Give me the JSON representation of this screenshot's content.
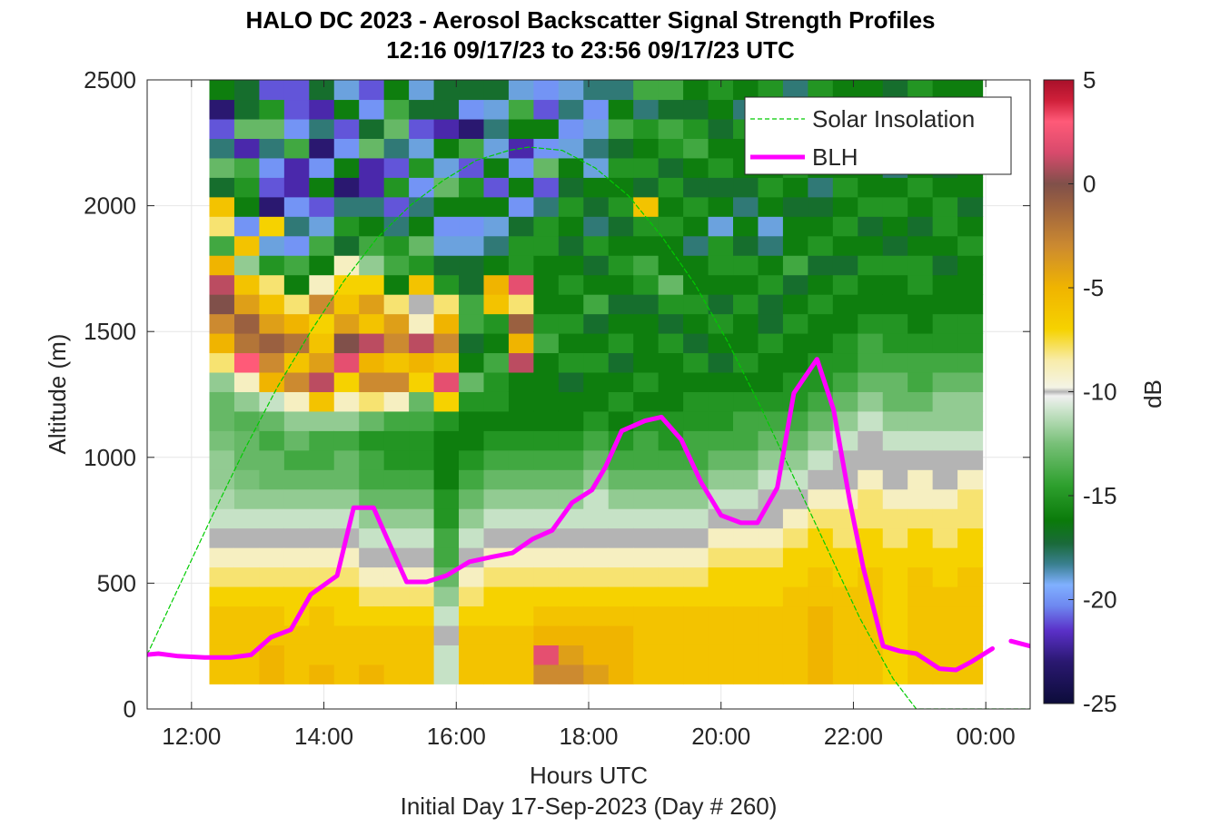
{
  "chart_data": {
    "type": "heatmap",
    "title": [
      "HALO DC 2023 - Aerosol Backscatter Signal Strength Profiles",
      "12:16 09/17/23 to 23:56 09/17/23  UTC"
    ],
    "xlabel": "Hours UTC",
    "ylabel": "Altitude (m)",
    "footer": "Initial Day 17-Sep-2023 (Day # 260)",
    "xlim": [
      11.33,
      24.67
    ],
    "ylim": [
      0,
      2500
    ],
    "xticks": [
      {
        "v": 12,
        "label": "12:00"
      },
      {
        "v": 14,
        "label": "14:00"
      },
      {
        "v": 16,
        "label": "16:00"
      },
      {
        "v": 18,
        "label": "18:00"
      },
      {
        "v": 20,
        "label": "20:00"
      },
      {
        "v": 22,
        "label": "22:00"
      },
      {
        "v": 24,
        "label": "00:00"
      }
    ],
    "yticks": [
      0,
      500,
      1000,
      1500,
      2000,
      2500
    ],
    "grid": true,
    "colorbar": {
      "label": "dB",
      "min": -25,
      "max": 5,
      "ticks": [
        5,
        0,
        -5,
        -10,
        -15,
        -20,
        -25
      ]
    },
    "heatmap": {
      "x_start": 12.27,
      "x_end": 23.95,
      "y_start": 100,
      "y_end": 2500,
      "note": "dB values per time column, low to high altitude",
      "y_low": 100,
      "y_high": 2500,
      "columns": [
        [
          -6,
          -6,
          -6,
          -6,
          -7,
          -8,
          -9,
          -10,
          -11,
          -11.5,
          -12,
          -12,
          -12.5,
          -13,
          -13,
          -12,
          -8,
          -5,
          -3,
          0,
          1,
          -5,
          -14,
          -8,
          -6,
          -17,
          -13,
          -18,
          -21,
          -23,
          -16
        ],
        [
          -6,
          -6,
          -6,
          -6,
          -7,
          -8,
          -9,
          -10,
          -11,
          -12,
          -12.5,
          -13,
          -13,
          -13.5,
          -12,
          -9,
          3,
          -2,
          -1,
          -4,
          -6,
          -12,
          -6,
          -20,
          -16,
          -15,
          -14,
          -22,
          -13,
          -17,
          -17
        ],
        [
          -5,
          -5,
          -6,
          -6,
          -7,
          -8,
          -9,
          -10,
          -11,
          -12,
          -13,
          -13,
          -14,
          -13,
          -11,
          -5,
          -3,
          -1,
          -4,
          -6,
          -8,
          -15,
          -19,
          -7,
          -23,
          -21,
          -20,
          -18,
          -13,
          -15,
          -21
        ],
        [
          -6,
          -6,
          -6,
          -7,
          -7,
          -8,
          -9,
          -10,
          -11,
          -12,
          -13,
          -14,
          -13,
          -12,
          -9,
          -3,
          -6,
          -2,
          -5,
          -8,
          -16,
          -14,
          -20,
          -18,
          -20,
          -22,
          -22,
          -14,
          -20,
          -21,
          -21
        ],
        [
          -5,
          -6,
          -6,
          -6,
          -7,
          -8,
          -9,
          -10,
          -11,
          -12,
          -13,
          -14,
          -14,
          -12,
          -6,
          1,
          -4,
          -6,
          -7,
          -3,
          -9,
          -16,
          -14,
          -19,
          -21,
          -16,
          -20,
          -23,
          -18,
          -22,
          -17
        ],
        [
          -6,
          -6,
          -6,
          -7,
          -7,
          -8,
          -9,
          -10,
          -11,
          -12,
          -13,
          -13,
          -14,
          -12,
          -9,
          -7,
          2,
          0,
          -4,
          -6,
          -7,
          -9,
          -17,
          -15,
          -18,
          -23,
          -16,
          -20,
          -21,
          -16,
          -19
        ],
        [
          -5,
          -6,
          -6,
          -7,
          -8,
          -9,
          -10,
          -11,
          -12,
          -13,
          -14,
          -14,
          -15,
          -13,
          -8,
          -3,
          -5,
          1,
          -6,
          -4,
          -7,
          -12,
          -14,
          -16,
          -18,
          -22,
          -22,
          -13,
          -17,
          -20,
          -21
        ],
        [
          -6,
          -6,
          -6,
          -7,
          -8,
          -9,
          -10,
          -11,
          -12,
          -13,
          -14,
          -15,
          -15,
          -14,
          -9,
          -3,
          -6,
          -3,
          -4,
          -8,
          -16,
          -14,
          -15,
          -18,
          -21,
          -15,
          -21,
          -18,
          -13,
          -14,
          -16
        ],
        [
          -6,
          -6,
          -6,
          -7,
          -8,
          -9,
          -10,
          -11,
          -12,
          -13,
          -14,
          -15,
          -15,
          -14,
          -13,
          -7,
          -5,
          1,
          -9,
          -10,
          -6,
          -15,
          -13,
          -16,
          -18,
          -20,
          -15,
          -19,
          -21,
          -17,
          -19
        ],
        [
          -11,
          -11,
          -10,
          -11,
          -12,
          -13,
          -14,
          -14,
          -15,
          -15,
          -16,
          -16,
          -16,
          -15,
          -7,
          2,
          -6,
          -3,
          -5,
          -8,
          -15,
          -17,
          -19,
          -20,
          -16,
          -13,
          -19,
          -16,
          -22,
          -17,
          -17
        ],
        [
          -6,
          -6,
          -6,
          -7,
          -8,
          -9,
          -10,
          -11,
          -12,
          -13,
          -14,
          -15,
          -16,
          -16,
          -15,
          -13,
          -16,
          -17,
          -14,
          -14,
          -17,
          -17,
          -19,
          -20,
          -16,
          -15,
          -21,
          -14,
          -23,
          -20,
          -17
        ],
        [
          -6,
          -6,
          -6,
          -7,
          -7,
          -8,
          -9,
          -10,
          -11,
          -12,
          -13,
          -14,
          -15,
          -16,
          -15,
          -15,
          -14,
          -16,
          -15,
          -6,
          -5,
          -16,
          -18,
          -19,
          -16,
          -21,
          -16,
          -19,
          -18,
          -19,
          -17
        ],
        [
          -6,
          -6,
          -6,
          -7,
          -7,
          -8,
          -9,
          -10,
          -11,
          -12,
          -13,
          -14,
          -15,
          -16,
          -16,
          -16,
          1,
          -5,
          -1,
          -8,
          2,
          -15,
          -15,
          -17,
          -20,
          -16,
          -20,
          -22,
          -16,
          -14,
          -19
        ],
        [
          -3,
          2,
          -5,
          -6,
          -7,
          -8,
          -9,
          -10,
          -11,
          -12,
          -13,
          -14,
          -15,
          -16,
          -16,
          -16,
          -16,
          -14,
          -15,
          -16,
          -16,
          -16,
          -15,
          -15,
          -18,
          -21,
          -13,
          -20,
          -16,
          -21,
          -20
        ],
        [
          -3,
          -4,
          -5,
          -6,
          -7,
          -8,
          -9,
          -10,
          -11,
          -12,
          -13,
          -14,
          -15,
          -16,
          -16,
          -17,
          -15,
          -16,
          -15,
          -16,
          -15,
          -16,
          -17,
          -16,
          -15,
          -17,
          -16,
          -19,
          -20,
          -18,
          -19
        ],
        [
          -4,
          -5,
          -5,
          -6,
          -7,
          -8,
          -9,
          -10,
          -11,
          -11,
          -12,
          -13,
          -14,
          -15,
          -16,
          -16,
          -15,
          -16,
          -17,
          -14,
          -16,
          -17,
          -15,
          -18,
          -17,
          -16,
          -19,
          -18,
          -19,
          -20,
          -18
        ],
        [
          -5,
          -5,
          -5,
          -6,
          -7,
          -8,
          -9,
          -10,
          -11,
          -12,
          -13,
          -14,
          -15,
          -16,
          -15,
          -16,
          -17,
          -15,
          -16,
          -17,
          -16,
          -15,
          -16,
          -17,
          -15,
          -16,
          -15,
          -17,
          -14,
          -16,
          -18
        ],
        [
          -6,
          -6,
          -6,
          -6,
          -7,
          -8,
          -9,
          -10,
          -11,
          -12,
          -13,
          -14,
          -14,
          -15,
          -16,
          -15,
          -16,
          -16,
          -16,
          -17,
          -15,
          -14,
          -16,
          -15,
          -6,
          -17,
          -15,
          -16,
          -15,
          -18,
          -14
        ],
        [
          -6,
          -6,
          -6,
          -6,
          -7,
          -8,
          -9,
          -10,
          -11,
          -12,
          -13,
          -14,
          -15,
          -15,
          -16,
          -16,
          -16,
          -15,
          -17,
          -15,
          -13,
          -16,
          -16,
          -15,
          -16,
          -15,
          -17,
          -15,
          -14,
          -17,
          -14
        ],
        [
          -6,
          -6,
          -6,
          -6,
          -7,
          -8,
          -9,
          -10,
          -11,
          -12,
          -13,
          -14,
          -14,
          -15,
          -15,
          -16,
          -15,
          -17,
          -16,
          -15,
          -16,
          -16,
          -18,
          -16,
          -15,
          -17,
          -16,
          -14,
          -15,
          -17,
          -16
        ],
        [
          -6,
          -6,
          -6,
          -6,
          -7,
          -7,
          -8,
          -9,
          -10,
          -11,
          -12,
          -13,
          -14,
          -15,
          -15,
          -16,
          -17,
          -16,
          -15,
          -17,
          -16,
          -15,
          -15,
          -19,
          -16,
          -17,
          -15,
          -16,
          -17,
          -16,
          -15
        ],
        [
          -6,
          -6,
          -6,
          -6,
          -7,
          -7,
          -8,
          -9,
          -10,
          -11,
          -12,
          -13,
          -14,
          -14,
          -15,
          -16,
          -15,
          -16,
          -16,
          -15,
          -16,
          -15,
          -17,
          -16,
          -18,
          -17,
          -16,
          -16,
          -15,
          -18,
          -16
        ],
        [
          -6,
          -6,
          -6,
          -6,
          -7,
          -7,
          -8,
          -9,
          -10,
          -10,
          -11,
          -12,
          -13,
          -14,
          -15,
          -16,
          -16,
          -15,
          -17,
          -17,
          -15,
          -16,
          -18,
          -19,
          -16,
          -15,
          -16,
          -17,
          -16,
          -14,
          -15
        ],
        [
          -6,
          -6,
          -6,
          -6,
          -6,
          -7,
          -7,
          -8,
          -9,
          -10,
          -11,
          -12,
          -13,
          -14,
          -15,
          -15,
          -16,
          -16,
          -15,
          -16,
          -17,
          -14,
          -16,
          -16,
          -17,
          -16,
          -15,
          -16,
          -15,
          -14,
          -18
        ],
        [
          -5,
          -5,
          -5,
          -5,
          -6,
          -6,
          -7,
          -7,
          -8,
          -9,
          -10,
          -11,
          -12,
          -13,
          -14,
          -15,
          -15,
          -16,
          -16,
          -15,
          -16,
          -17,
          -15,
          -16,
          -17,
          -18,
          -16,
          -15,
          -16,
          -17,
          -15
        ],
        [
          -6,
          -6,
          -6,
          -6,
          -6,
          -7,
          -7,
          -8,
          -8,
          -9,
          -10,
          -10,
          -11,
          -12,
          -13,
          -14,
          -15,
          -15,
          -16,
          -16,
          -15,
          -17,
          -16,
          -15,
          -16,
          -15,
          -16,
          -16,
          -17,
          -15,
          -16
        ],
        [
          -6,
          -6,
          -6,
          -6,
          -6,
          -6,
          -7,
          -7,
          -8,
          -8,
          -9,
          -10,
          -10,
          -11,
          -12,
          -13,
          -14,
          -14,
          -15,
          -16,
          -16,
          -15,
          -16,
          -17,
          -15,
          -16,
          -16,
          -17,
          -16,
          -15,
          -16
        ],
        [
          -7,
          -7,
          -7,
          -7,
          -7,
          -7,
          -7,
          -8,
          -8,
          -9,
          -10,
          -10,
          -11,
          -12,
          -13,
          -13,
          -14,
          -15,
          -15,
          -16,
          -16,
          -15,
          -17,
          -16,
          -15,
          -16,
          -18,
          -16,
          -15,
          -16,
          -17
        ],
        [
          -6,
          -6,
          -6,
          -6,
          -6,
          -6,
          -7,
          -7,
          -8,
          -9,
          -9,
          -10,
          -11,
          -12,
          -13,
          -14,
          -14,
          -15,
          -16,
          -16,
          -15,
          -15,
          -16,
          -17,
          -16,
          -15,
          -16,
          -17,
          -17,
          -16,
          -15
        ],
        [
          -6,
          -6,
          -6,
          -6,
          -6,
          -7,
          -7,
          -8,
          -8,
          -9,
          -10,
          -10,
          -11,
          -12,
          -12,
          -13,
          -14,
          -15,
          -15,
          -16,
          -16,
          -17,
          -16,
          -15,
          -15,
          -16,
          -17,
          -16,
          -16,
          -15,
          -16
        ],
        [
          -6,
          -6,
          -6,
          -6,
          -6,
          -6,
          -7,
          -7,
          -8,
          -8,
          -9,
          -10,
          -11,
          -12,
          -12,
          -13,
          -14,
          -15,
          -15,
          -16,
          -16,
          -16,
          -15,
          -16,
          -17,
          -16,
          -16,
          -15,
          -16,
          -17,
          -16
        ]
      ]
    },
    "series": [
      {
        "name": "Solar Insolation",
        "style": "dashed",
        "color": "#00cc00",
        "x": [
          11.33,
          11.8,
          12.3,
          12.8,
          13.3,
          13.8,
          14.3,
          14.8,
          15.3,
          15.8,
          16.3,
          16.8,
          17.1,
          17.6,
          18.1,
          18.6,
          19.1,
          19.6,
          20.1,
          20.6,
          21.1,
          21.6,
          22.1,
          22.6,
          22.95,
          23.3,
          24.67
        ],
        "y": [
          216,
          480,
          760,
          1030,
          1280,
          1500,
          1700,
          1870,
          2000,
          2100,
          2180,
          2220,
          2233,
          2220,
          2150,
          2040,
          1880,
          1690,
          1460,
          1200,
          920,
          640,
          360,
          120,
          0,
          0,
          0
        ]
      },
      {
        "name": "BLH",
        "style": "solid",
        "color": "#ff00ff",
        "x": [
          11.33,
          11.5,
          11.8,
          12.2,
          12.6,
          12.9,
          13.2,
          13.5,
          13.8,
          14.2,
          14.45,
          14.75,
          14.95,
          15.25,
          15.55,
          15.85,
          16.2,
          16.55,
          16.85,
          17.15,
          17.45,
          17.75,
          18.05,
          18.25,
          18.5,
          18.85,
          19.1,
          19.4,
          19.7,
          20.0,
          20.3,
          20.55,
          20.85,
          21.1,
          21.45,
          21.7,
          21.95,
          22.15,
          22.45,
          22.7,
          22.95,
          23.3,
          23.55,
          23.8,
          24.1
        ],
        "y": [
          216,
          220,
          210,
          205,
          205,
          215,
          285,
          315,
          455,
          530,
          800,
          800,
          680,
          505,
          505,
          530,
          585,
          605,
          620,
          675,
          710,
          820,
          870,
          960,
          1105,
          1145,
          1160,
          1070,
          900,
          770,
          740,
          740,
          880,
          1255,
          1390,
          1190,
          820,
          560,
          250,
          230,
          220,
          160,
          155,
          190,
          240
        ]
      },
      {
        "name": "BLH",
        "style": "solid",
        "color": "#ff00ff",
        "segment": true,
        "x": [
          24.38,
          24.67
        ],
        "y": [
          270,
          250
        ]
      }
    ],
    "legend": {
      "placement": "top-right",
      "entries": [
        "Solar Insolation",
        "BLH"
      ]
    }
  }
}
